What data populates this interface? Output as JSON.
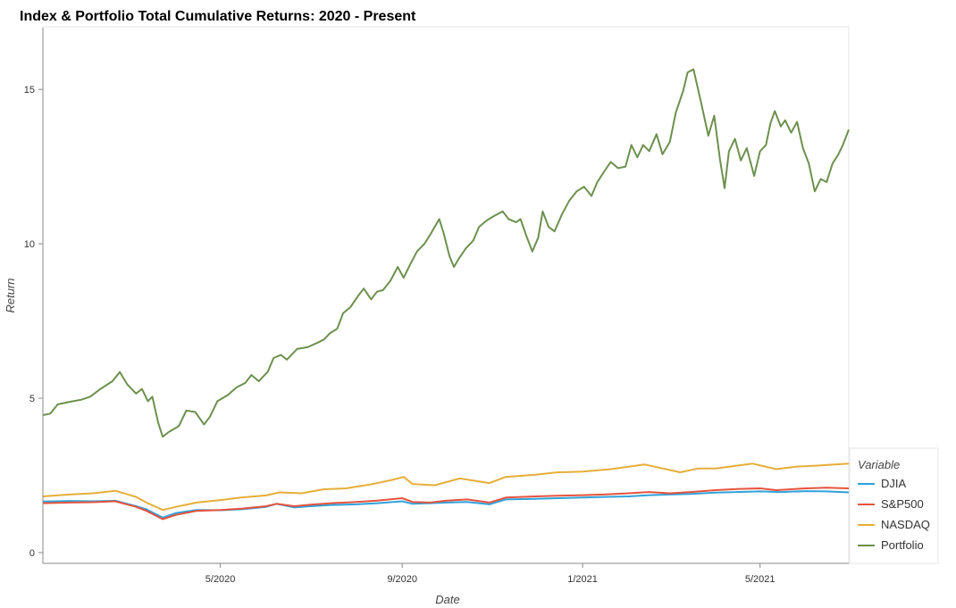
{
  "chart_data": {
    "type": "line",
    "title": "Index & Portfolio Total Cumulative Returns: 2020 - Present",
    "xlabel": "Date",
    "ylabel": "Return",
    "x_ticks": [
      "5/2020",
      "9/2020",
      "1/2021",
      "5/2021"
    ],
    "y_ticks": [
      0,
      5,
      10,
      15
    ],
    "xlim": [
      "2020-01-02",
      "2021-06-30"
    ],
    "ylim": [
      -0.35,
      17.0
    ],
    "grid": false,
    "legend": {
      "title": "Variable",
      "placement": "bottom-right, outside plot"
    },
    "series": [
      {
        "name": "DJIA",
        "color": "#30a2da",
        "points": [
          [
            "2020-01-02",
            1.65
          ],
          [
            "2020-01-20",
            1.67
          ],
          [
            "2020-02-05",
            1.66
          ],
          [
            "2020-02-20",
            1.68
          ],
          [
            "2020-03-05",
            1.5
          ],
          [
            "2020-03-12",
            1.4
          ],
          [
            "2020-03-23",
            1.13
          ],
          [
            "2020-04-01",
            1.28
          ],
          [
            "2020-04-15",
            1.38
          ],
          [
            "2020-05-01",
            1.37
          ],
          [
            "2020-05-15",
            1.4
          ],
          [
            "2020-06-01",
            1.48
          ],
          [
            "2020-06-08",
            1.58
          ],
          [
            "2020-06-20",
            1.46
          ],
          [
            "2020-07-01",
            1.5
          ],
          [
            "2020-07-15",
            1.54
          ],
          [
            "2020-08-01",
            1.56
          ],
          [
            "2020-08-15",
            1.6
          ],
          [
            "2020-09-01",
            1.66
          ],
          [
            "2020-09-08",
            1.58
          ],
          [
            "2020-09-20",
            1.6
          ],
          [
            "2020-10-01",
            1.62
          ],
          [
            "2020-10-15",
            1.64
          ],
          [
            "2020-10-30",
            1.56
          ],
          [
            "2020-11-10",
            1.72
          ],
          [
            "2020-11-30",
            1.74
          ],
          [
            "2020-12-15",
            1.76
          ],
          [
            "2021-01-01",
            1.78
          ],
          [
            "2021-01-15",
            1.8
          ],
          [
            "2021-02-01",
            1.82
          ],
          [
            "2021-02-15",
            1.86
          ],
          [
            "2021-03-01",
            1.88
          ],
          [
            "2021-03-15",
            1.9
          ],
          [
            "2021-04-01",
            1.94
          ],
          [
            "2021-04-15",
            1.96
          ],
          [
            "2021-05-01",
            1.98
          ],
          [
            "2021-05-15",
            1.96
          ],
          [
            "2021-06-01",
            1.99
          ],
          [
            "2021-06-15",
            1.98
          ],
          [
            "2021-06-30",
            1.95
          ]
        ]
      },
      {
        "name": "S&P500",
        "color": "#e5533d",
        "points": [
          [
            "2020-01-02",
            1.6
          ],
          [
            "2020-01-20",
            1.62
          ],
          [
            "2020-02-05",
            1.63
          ],
          [
            "2020-02-20",
            1.66
          ],
          [
            "2020-03-05",
            1.48
          ],
          [
            "2020-03-12",
            1.35
          ],
          [
            "2020-03-23",
            1.08
          ],
          [
            "2020-04-01",
            1.22
          ],
          [
            "2020-04-15",
            1.35
          ],
          [
            "2020-05-01",
            1.38
          ],
          [
            "2020-05-15",
            1.42
          ],
          [
            "2020-06-01",
            1.5
          ],
          [
            "2020-06-08",
            1.58
          ],
          [
            "2020-06-20",
            1.5
          ],
          [
            "2020-07-01",
            1.55
          ],
          [
            "2020-07-15",
            1.6
          ],
          [
            "2020-08-01",
            1.64
          ],
          [
            "2020-08-15",
            1.68
          ],
          [
            "2020-09-01",
            1.76
          ],
          [
            "2020-09-08",
            1.64
          ],
          [
            "2020-09-20",
            1.62
          ],
          [
            "2020-10-01",
            1.68
          ],
          [
            "2020-10-15",
            1.72
          ],
          [
            "2020-10-30",
            1.62
          ],
          [
            "2020-11-10",
            1.78
          ],
          [
            "2020-11-30",
            1.82
          ],
          [
            "2020-12-15",
            1.84
          ],
          [
            "2021-01-01",
            1.86
          ],
          [
            "2021-01-15",
            1.88
          ],
          [
            "2021-02-01",
            1.92
          ],
          [
            "2021-02-15",
            1.96
          ],
          [
            "2021-03-01",
            1.92
          ],
          [
            "2021-03-15",
            1.96
          ],
          [
            "2021-04-01",
            2.02
          ],
          [
            "2021-04-15",
            2.06
          ],
          [
            "2021-05-01",
            2.08
          ],
          [
            "2021-05-12",
            2.02
          ],
          [
            "2021-06-01",
            2.08
          ],
          [
            "2021-06-15",
            2.1
          ],
          [
            "2021-06-30",
            2.08
          ]
        ]
      },
      {
        "name": "NASDAQ",
        "color": "#e5ae38",
        "points": [
          [
            "2020-01-02",
            1.82
          ],
          [
            "2020-01-20",
            1.88
          ],
          [
            "2020-02-05",
            1.92
          ],
          [
            "2020-02-20",
            2.0
          ],
          [
            "2020-03-05",
            1.8
          ],
          [
            "2020-03-12",
            1.62
          ],
          [
            "2020-03-23",
            1.38
          ],
          [
            "2020-04-01",
            1.48
          ],
          [
            "2020-04-15",
            1.62
          ],
          [
            "2020-05-01",
            1.7
          ],
          [
            "2020-05-15",
            1.78
          ],
          [
            "2020-06-01",
            1.85
          ],
          [
            "2020-06-10",
            1.95
          ],
          [
            "2020-06-25",
            1.92
          ],
          [
            "2020-07-10",
            2.05
          ],
          [
            "2020-07-25",
            2.08
          ],
          [
            "2020-08-10",
            2.2
          ],
          [
            "2020-08-25",
            2.35
          ],
          [
            "2020-09-02",
            2.45
          ],
          [
            "2020-09-08",
            2.22
          ],
          [
            "2020-09-23",
            2.18
          ],
          [
            "2020-10-10",
            2.4
          ],
          [
            "2020-10-30",
            2.25
          ],
          [
            "2020-11-10",
            2.45
          ],
          [
            "2020-11-30",
            2.52
          ],
          [
            "2020-12-15",
            2.6
          ],
          [
            "2021-01-01",
            2.62
          ],
          [
            "2021-01-20",
            2.7
          ],
          [
            "2021-02-12",
            2.85
          ],
          [
            "2021-03-08",
            2.6
          ],
          [
            "2021-03-20",
            2.72
          ],
          [
            "2021-04-01",
            2.72
          ],
          [
            "2021-04-26",
            2.88
          ],
          [
            "2021-05-12",
            2.7
          ],
          [
            "2021-05-25",
            2.78
          ],
          [
            "2021-06-10",
            2.82
          ],
          [
            "2021-06-30",
            2.88
          ]
        ]
      },
      {
        "name": "Portfolio",
        "color": "#6d904f",
        "points": [
          [
            "2020-01-02",
            4.45
          ],
          [
            "2020-01-07",
            4.5
          ],
          [
            "2020-01-12",
            4.8
          ],
          [
            "2020-01-20",
            4.88
          ],
          [
            "2020-01-28",
            4.95
          ],
          [
            "2020-02-03",
            5.05
          ],
          [
            "2020-02-10",
            5.3
          ],
          [
            "2020-02-18",
            5.55
          ],
          [
            "2020-02-23",
            5.85
          ],
          [
            "2020-02-28",
            5.45
          ],
          [
            "2020-03-05",
            5.15
          ],
          [
            "2020-03-09",
            5.3
          ],
          [
            "2020-03-13",
            4.9
          ],
          [
            "2020-03-16",
            5.05
          ],
          [
            "2020-03-20",
            4.2
          ],
          [
            "2020-03-23",
            3.75
          ],
          [
            "2020-03-27",
            3.9
          ],
          [
            "2020-04-03",
            4.1
          ],
          [
            "2020-04-08",
            4.6
          ],
          [
            "2020-04-14",
            4.55
          ],
          [
            "2020-04-20",
            4.15
          ],
          [
            "2020-04-24",
            4.4
          ],
          [
            "2020-04-29",
            4.9
          ],
          [
            "2020-05-06",
            5.1
          ],
          [
            "2020-05-12",
            5.35
          ],
          [
            "2020-05-18",
            5.5
          ],
          [
            "2020-05-22",
            5.75
          ],
          [
            "2020-05-27",
            5.55
          ],
          [
            "2020-06-02",
            5.85
          ],
          [
            "2020-06-06",
            6.3
          ],
          [
            "2020-06-11",
            6.4
          ],
          [
            "2020-06-15",
            6.25
          ],
          [
            "2020-06-22",
            6.6
          ],
          [
            "2020-06-29",
            6.65
          ],
          [
            "2020-07-06",
            6.8
          ],
          [
            "2020-07-10",
            6.9
          ],
          [
            "2020-07-14",
            7.1
          ],
          [
            "2020-07-19",
            7.25
          ],
          [
            "2020-07-23",
            7.75
          ],
          [
            "2020-07-28",
            7.95
          ],
          [
            "2020-08-02",
            8.3
          ],
          [
            "2020-08-06",
            8.55
          ],
          [
            "2020-08-11",
            8.2
          ],
          [
            "2020-08-15",
            8.45
          ],
          [
            "2020-08-19",
            8.5
          ],
          [
            "2020-08-24",
            8.8
          ],
          [
            "2020-08-29",
            9.25
          ],
          [
            "2020-09-02",
            8.9
          ],
          [
            "2020-09-06",
            9.3
          ],
          [
            "2020-09-11",
            9.75
          ],
          [
            "2020-09-16",
            10.0
          ],
          [
            "2020-09-20",
            10.3
          ],
          [
            "2020-09-26",
            10.8
          ],
          [
            "2020-09-29",
            10.35
          ],
          [
            "2020-10-03",
            9.6
          ],
          [
            "2020-10-06",
            9.25
          ],
          [
            "2020-10-09",
            9.5
          ],
          [
            "2020-10-14",
            9.85
          ],
          [
            "2020-10-19",
            10.1
          ],
          [
            "2020-10-23",
            10.55
          ],
          [
            "2020-10-28",
            10.75
          ],
          [
            "2020-11-02",
            10.9
          ],
          [
            "2020-11-08",
            11.05
          ],
          [
            "2020-11-12",
            10.8
          ],
          [
            "2020-11-17",
            10.7
          ],
          [
            "2020-11-20",
            10.8
          ],
          [
            "2020-11-24",
            10.25
          ],
          [
            "2020-11-28",
            9.75
          ],
          [
            "2020-12-02",
            10.2
          ],
          [
            "2020-12-05",
            11.05
          ],
          [
            "2020-12-09",
            10.55
          ],
          [
            "2020-12-13",
            10.4
          ],
          [
            "2020-12-18",
            10.95
          ],
          [
            "2020-12-23",
            11.4
          ],
          [
            "2020-12-28",
            11.7
          ],
          [
            "2021-01-02",
            11.85
          ],
          [
            "2021-01-07",
            11.55
          ],
          [
            "2021-01-11",
            12.0
          ],
          [
            "2021-01-15",
            12.3
          ],
          [
            "2021-01-20",
            12.65
          ],
          [
            "2021-01-25",
            12.45
          ],
          [
            "2021-01-30",
            12.5
          ],
          [
            "2021-02-03",
            13.2
          ],
          [
            "2021-02-07",
            12.8
          ],
          [
            "2021-02-11",
            13.2
          ],
          [
            "2021-02-15",
            13.0
          ],
          [
            "2021-02-20",
            13.55
          ],
          [
            "2021-02-24",
            12.9
          ],
          [
            "2021-03-01",
            13.3
          ],
          [
            "2021-03-05",
            14.25
          ],
          [
            "2021-03-10",
            14.95
          ],
          [
            "2021-03-13",
            15.55
          ],
          [
            "2021-03-17",
            15.65
          ],
          [
            "2021-03-22",
            14.6
          ],
          [
            "2021-03-27",
            13.5
          ],
          [
            "2021-03-31",
            14.15
          ],
          [
            "2021-04-04",
            12.7
          ],
          [
            "2021-04-07",
            11.8
          ],
          [
            "2021-04-10",
            13.0
          ],
          [
            "2021-04-14",
            13.4
          ],
          [
            "2021-04-18",
            12.7
          ],
          [
            "2021-04-22",
            13.1
          ],
          [
            "2021-04-27",
            12.2
          ],
          [
            "2021-05-01",
            13.0
          ],
          [
            "2021-05-05",
            13.2
          ],
          [
            "2021-05-08",
            13.9
          ],
          [
            "2021-05-11",
            14.3
          ],
          [
            "2021-05-15",
            13.8
          ],
          [
            "2021-05-18",
            14.0
          ],
          [
            "2021-05-22",
            13.6
          ],
          [
            "2021-05-26",
            13.95
          ],
          [
            "2021-05-30",
            13.1
          ],
          [
            "2021-06-03",
            12.6
          ],
          [
            "2021-06-07",
            11.7
          ],
          [
            "2021-06-11",
            12.1
          ],
          [
            "2021-06-15",
            12.0
          ],
          [
            "2021-06-19",
            12.6
          ],
          [
            "2021-06-23",
            12.9
          ],
          [
            "2021-06-26",
            13.2
          ],
          [
            "2021-06-30",
            13.7
          ]
        ]
      }
    ]
  }
}
